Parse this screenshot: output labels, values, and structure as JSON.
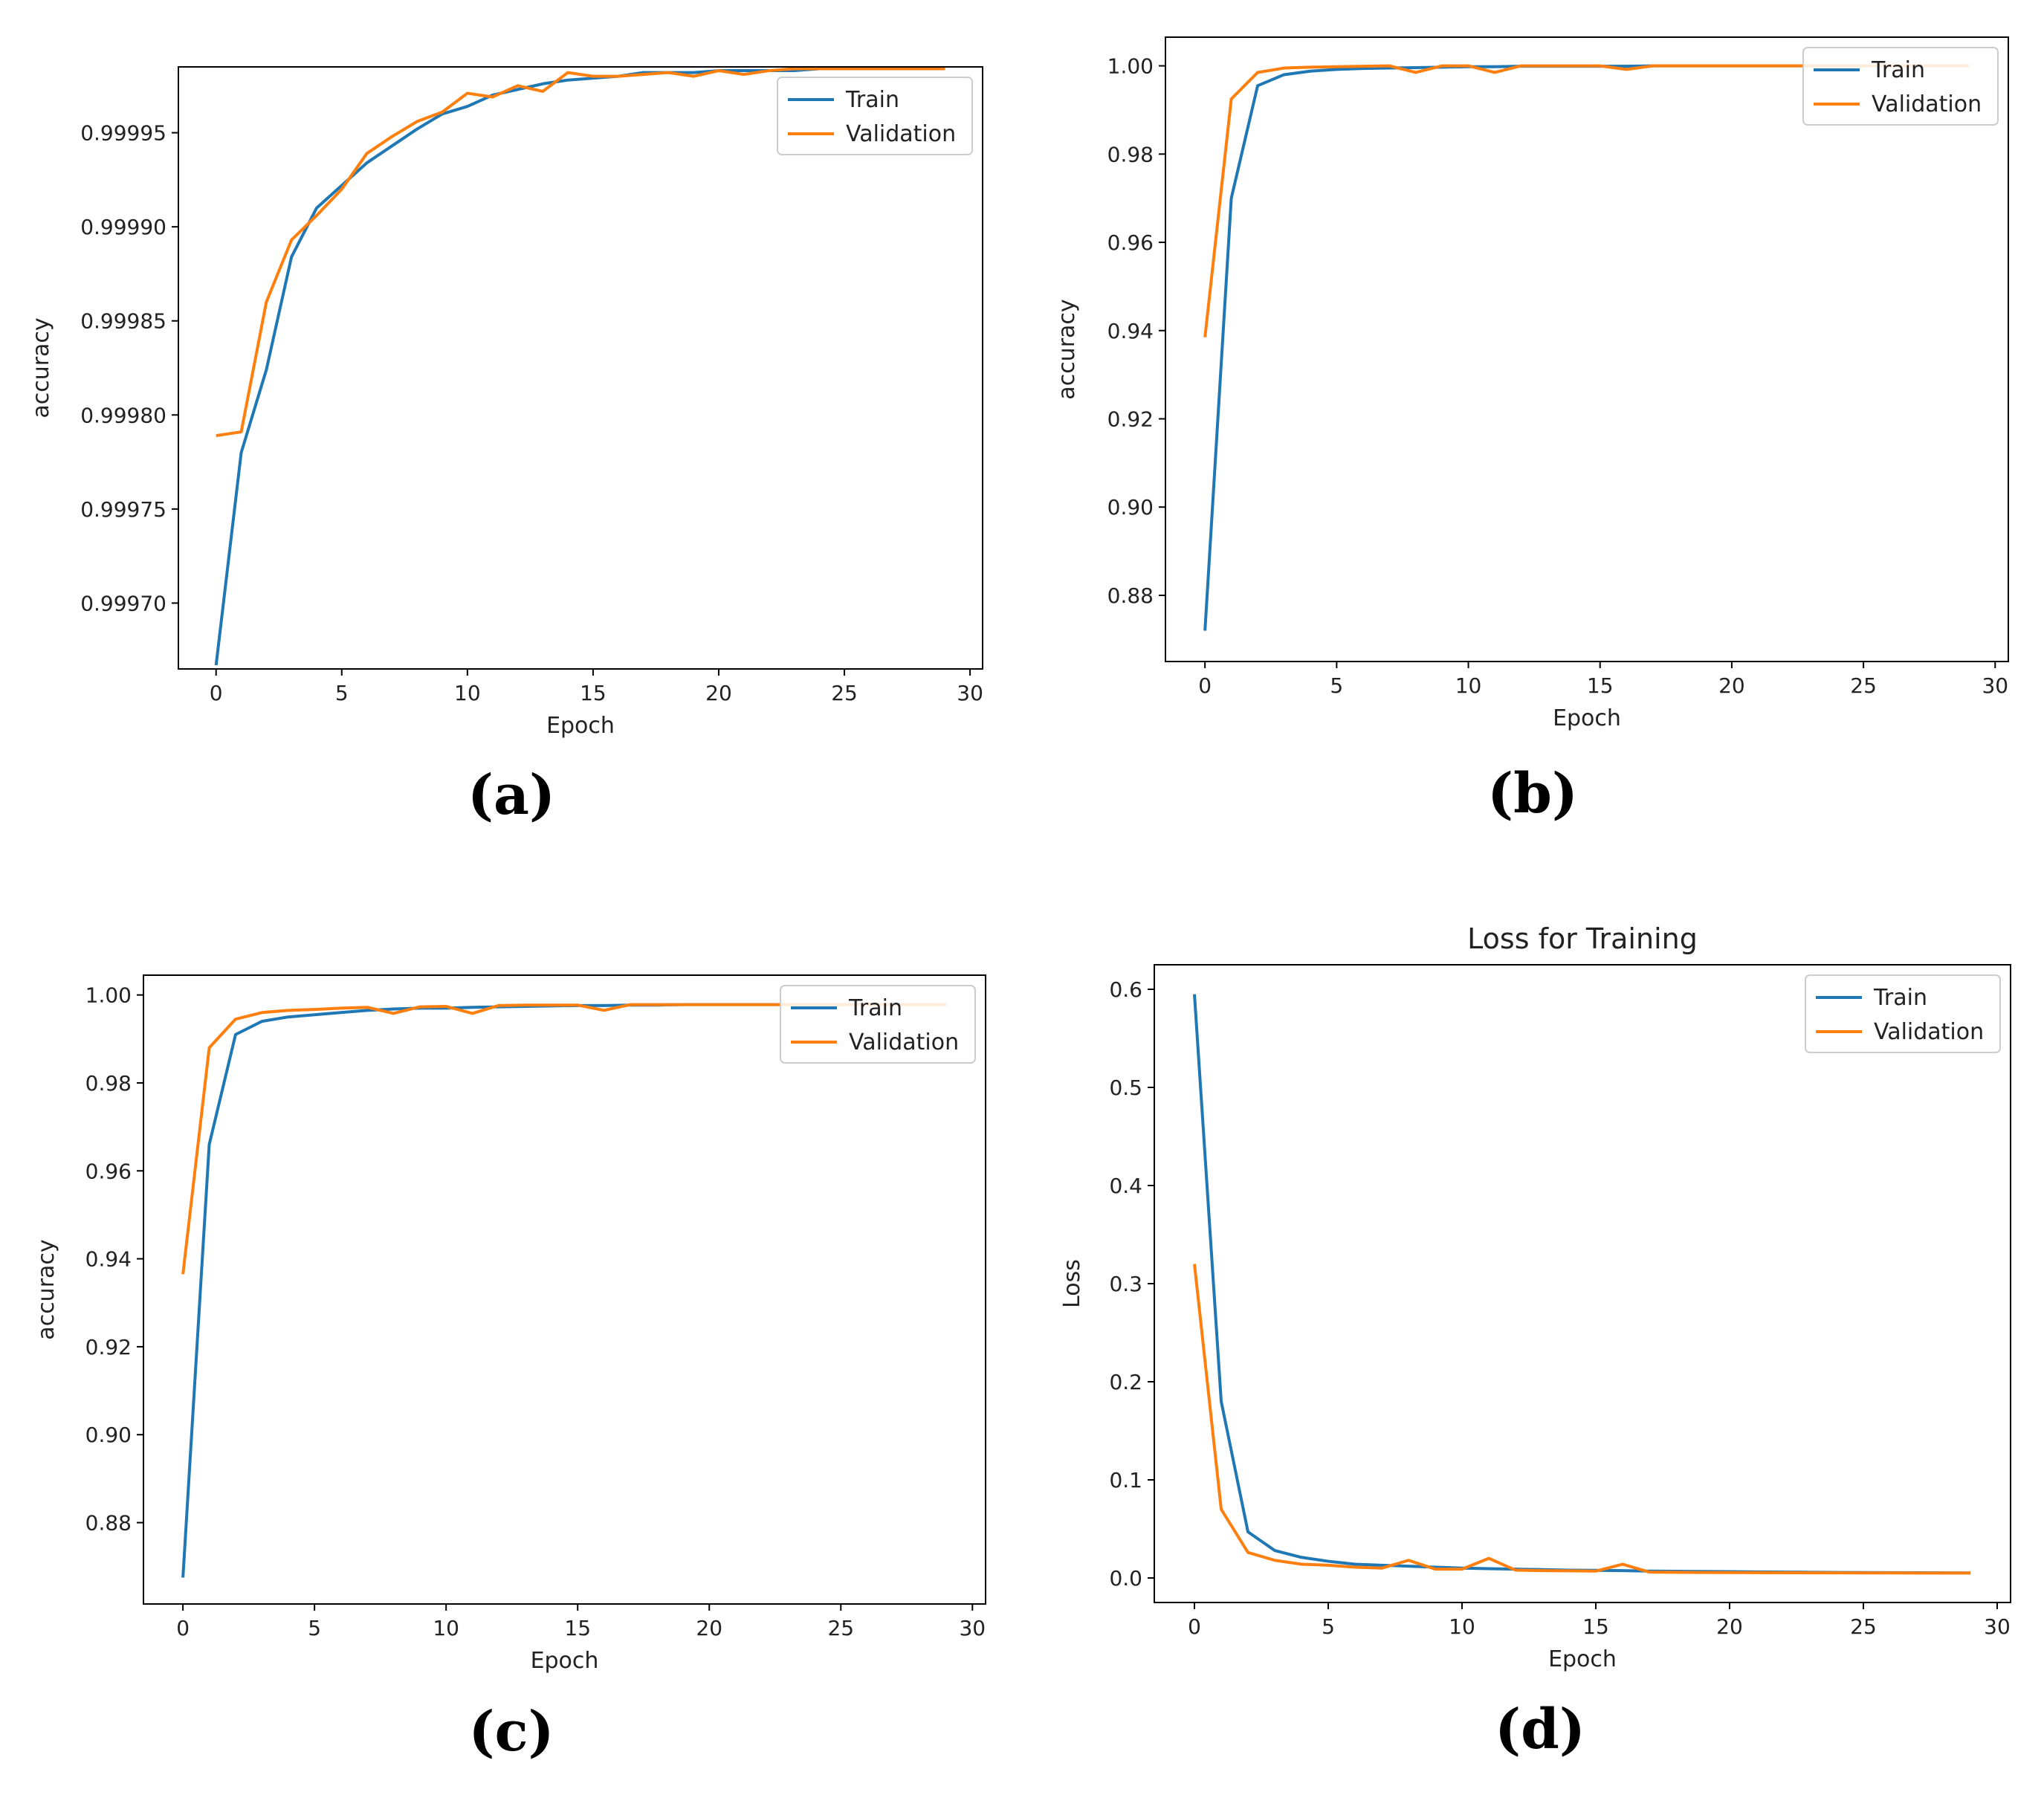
{
  "colors": {
    "train": "#1f77b4",
    "validation": "#ff7f0e",
    "axis": "#000000"
  },
  "chart_data": [
    {
      "type": "line",
      "caption": "(a)",
      "title": "",
      "xlabel": "Epoch",
      "ylabel": "accuracy",
      "xlim": [
        -1.5,
        30.5
      ],
      "ylim": [
        0.999665,
        0.999985
      ],
      "xticks": [
        0,
        5,
        10,
        15,
        20,
        25,
        30
      ],
      "yticks": [
        0.9997,
        0.99975,
        0.9998,
        0.99985,
        0.9999,
        0.99995
      ],
      "ytick_labels": [
        "0.99970",
        "0.99975",
        "0.99980",
        "0.99985",
        "0.99990",
        "0.99995"
      ],
      "legend_position": "upper right",
      "series": [
        {
          "name": "Train",
          "x": [
            0,
            1,
            2,
            3,
            4,
            5,
            6,
            7,
            8,
            9,
            10,
            11,
            12,
            13,
            14,
            15,
            16,
            17,
            18,
            19,
            20,
            21,
            22,
            23,
            24,
            25,
            26,
            27,
            28,
            29
          ],
          "values": [
            0.999667,
            0.99978,
            0.999824,
            0.999884,
            0.99991,
            0.999922,
            0.999934,
            0.999943,
            0.999952,
            0.99996,
            0.999964,
            0.99997,
            0.999973,
            0.999976,
            0.999978,
            0.999979,
            0.99998,
            0.999982,
            0.999982,
            0.999982,
            0.999983,
            0.999983,
            0.999983,
            0.999983,
            0.999984,
            0.999984,
            0.999984,
            0.999984,
            0.999984,
            0.999984
          ]
        },
        {
          "name": "Validation",
          "x": [
            0,
            1,
            2,
            3,
            4,
            5,
            6,
            7,
            8,
            9,
            10,
            11,
            12,
            13,
            14,
            15,
            16,
            17,
            18,
            19,
            20,
            21,
            22,
            23,
            24,
            25,
            26,
            27,
            28,
            29
          ],
          "values": [
            0.999789,
            0.999791,
            0.99986,
            0.999893,
            0.999906,
            0.99992,
            0.999939,
            0.999948,
            0.999956,
            0.999961,
            0.999971,
            0.999969,
            0.999975,
            0.999972,
            0.999982,
            0.99998,
            0.99998,
            0.999981,
            0.999982,
            0.99998,
            0.999983,
            0.999981,
            0.999983,
            0.999984,
            0.999984,
            0.999984,
            0.999984,
            0.999984,
            0.999984,
            0.999984
          ]
        }
      ]
    },
    {
      "type": "line",
      "caption": "(b)",
      "title": "",
      "xlabel": "Epoch",
      "ylabel": "accuracy",
      "xlim": [
        -1.5,
        30.5
      ],
      "ylim": [
        0.865,
        1.0065
      ],
      "xticks": [
        0,
        5,
        10,
        15,
        20,
        25,
        30
      ],
      "yticks": [
        0.88,
        0.9,
        0.92,
        0.94,
        0.96,
        0.98,
        1.0
      ],
      "ytick_labels": [
        "0.88",
        "0.90",
        "0.92",
        "0.94",
        "0.96",
        "0.98",
        "1.00"
      ],
      "legend_position": "upper right",
      "series": [
        {
          "name": "Train",
          "x": [
            0,
            1,
            2,
            3,
            4,
            5,
            6,
            7,
            8,
            9,
            10,
            11,
            12,
            13,
            14,
            15,
            16,
            17,
            18,
            19,
            20,
            21,
            22,
            23,
            24,
            25,
            26,
            27,
            28,
            29
          ],
          "values": [
            0.872,
            0.97,
            0.9955,
            0.998,
            0.9988,
            0.9992,
            0.9994,
            0.9995,
            0.9996,
            0.9997,
            0.9998,
            0.9998,
            0.9999,
            0.9999,
            0.9999,
            0.9999,
            0.9999,
            1.0,
            1.0,
            1.0,
            1.0,
            1.0,
            1.0,
            1.0,
            1.0,
            1.0,
            1.0,
            1.0,
            1.0,
            1.0
          ]
        },
        {
          "name": "Validation",
          "x": [
            0,
            1,
            2,
            3,
            4,
            5,
            6,
            7,
            8,
            9,
            10,
            11,
            12,
            13,
            14,
            15,
            16,
            17,
            18,
            19,
            20,
            21,
            22,
            23,
            24,
            25,
            26,
            27,
            28,
            29
          ],
          "values": [
            0.9385,
            0.9925,
            0.9985,
            0.9995,
            0.9997,
            0.9998,
            0.9999,
            1.0,
            0.9985,
            1.0,
            1.0,
            0.9985,
            1.0,
            1.0,
            1.0,
            1.0,
            0.9992,
            1.0,
            1.0,
            1.0,
            1.0,
            1.0,
            1.0,
            1.0,
            1.0,
            1.0,
            1.0,
            1.0,
            1.0,
            1.0
          ]
        }
      ]
    },
    {
      "type": "line",
      "caption": "(c)",
      "title": "",
      "xlabel": "Epoch",
      "ylabel": "accuracy",
      "xlim": [
        -1.5,
        30.5
      ],
      "ylim": [
        0.8615,
        1.0045
      ],
      "xticks": [
        0,
        5,
        10,
        15,
        20,
        25,
        30
      ],
      "yticks": [
        0.88,
        0.9,
        0.92,
        0.94,
        0.96,
        0.98,
        1.0
      ],
      "ytick_labels": [
        "0.88",
        "0.90",
        "0.92",
        "0.94",
        "0.96",
        "0.98",
        "1.00"
      ],
      "legend_position": "upper right",
      "series": [
        {
          "name": "Train",
          "x": [
            0,
            1,
            2,
            3,
            4,
            5,
            6,
            7,
            8,
            9,
            10,
            11,
            12,
            13,
            14,
            15,
            16,
            17,
            18,
            19,
            20,
            21,
            22,
            23,
            24,
            25,
            26,
            27,
            28,
            29
          ],
          "values": [
            0.8675,
            0.966,
            0.991,
            0.994,
            0.995,
            0.9955,
            0.996,
            0.9965,
            0.9968,
            0.997,
            0.997,
            0.9972,
            0.9973,
            0.9974,
            0.9975,
            0.9976,
            0.9976,
            0.9977,
            0.9977,
            0.9978,
            0.9978,
            0.9978,
            0.9978,
            0.9978,
            0.9978,
            0.9978,
            0.9978,
            0.9978,
            0.9978,
            0.9978
          ]
        },
        {
          "name": "Validation",
          "x": [
            0,
            1,
            2,
            3,
            4,
            5,
            6,
            7,
            8,
            9,
            10,
            11,
            12,
            13,
            14,
            15,
            16,
            17,
            18,
            19,
            20,
            21,
            22,
            23,
            24,
            25,
            26,
            27,
            28,
            29
          ],
          "values": [
            0.9365,
            0.988,
            0.9945,
            0.996,
            0.9965,
            0.9967,
            0.997,
            0.9972,
            0.9958,
            0.9973,
            0.9974,
            0.9958,
            0.9976,
            0.9977,
            0.9977,
            0.9977,
            0.9965,
            0.9978,
            0.9978,
            0.9978,
            0.9978,
            0.9978,
            0.9978,
            0.9978,
            0.9978,
            0.9978,
            0.9978,
            0.9978,
            0.9978,
            0.9978
          ]
        }
      ]
    },
    {
      "type": "line",
      "caption": "(d)",
      "title": "Loss for Training",
      "xlabel": "Epoch",
      "ylabel": "Loss",
      "xlim": [
        -1.5,
        30.5
      ],
      "ylim": [
        -0.025,
        0.625
      ],
      "xticks": [
        0,
        5,
        10,
        15,
        20,
        25,
        30
      ],
      "yticks": [
        0.0,
        0.1,
        0.2,
        0.3,
        0.4,
        0.5,
        0.6
      ],
      "ytick_labels": [
        "0.0",
        "0.1",
        "0.2",
        "0.3",
        "0.4",
        "0.5",
        "0.6"
      ],
      "legend_position": "upper right",
      "series": [
        {
          "name": "Train",
          "x": [
            0,
            1,
            2,
            3,
            4,
            5,
            6,
            7,
            8,
            9,
            10,
            11,
            12,
            13,
            14,
            15,
            16,
            17,
            18,
            19,
            20,
            21,
            22,
            23,
            24,
            25,
            26,
            27,
            28,
            29
          ],
          "values": [
            0.595,
            0.18,
            0.047,
            0.028,
            0.021,
            0.017,
            0.014,
            0.013,
            0.012,
            0.011,
            0.01,
            0.0095,
            0.009,
            0.0085,
            0.008,
            0.0078,
            0.0075,
            0.007,
            0.0068,
            0.0066,
            0.0064,
            0.0062,
            0.006,
            0.0058,
            0.0056,
            0.0055,
            0.0054,
            0.0053,
            0.0052,
            0.0051
          ]
        },
        {
          "name": "Validation",
          "x": [
            0,
            1,
            2,
            3,
            4,
            5,
            6,
            7,
            8,
            9,
            10,
            11,
            12,
            13,
            14,
            15,
            16,
            17,
            18,
            19,
            20,
            21,
            22,
            23,
            24,
            25,
            26,
            27,
            28,
            29
          ],
          "values": [
            0.32,
            0.07,
            0.026,
            0.018,
            0.014,
            0.013,
            0.011,
            0.01,
            0.018,
            0.009,
            0.009,
            0.02,
            0.008,
            0.0075,
            0.0073,
            0.007,
            0.014,
            0.006,
            0.0058,
            0.0056,
            0.0055,
            0.0054,
            0.0053,
            0.0052,
            0.0052,
            0.0051,
            0.0051,
            0.005,
            0.005,
            0.005
          ]
        }
      ]
    }
  ]
}
